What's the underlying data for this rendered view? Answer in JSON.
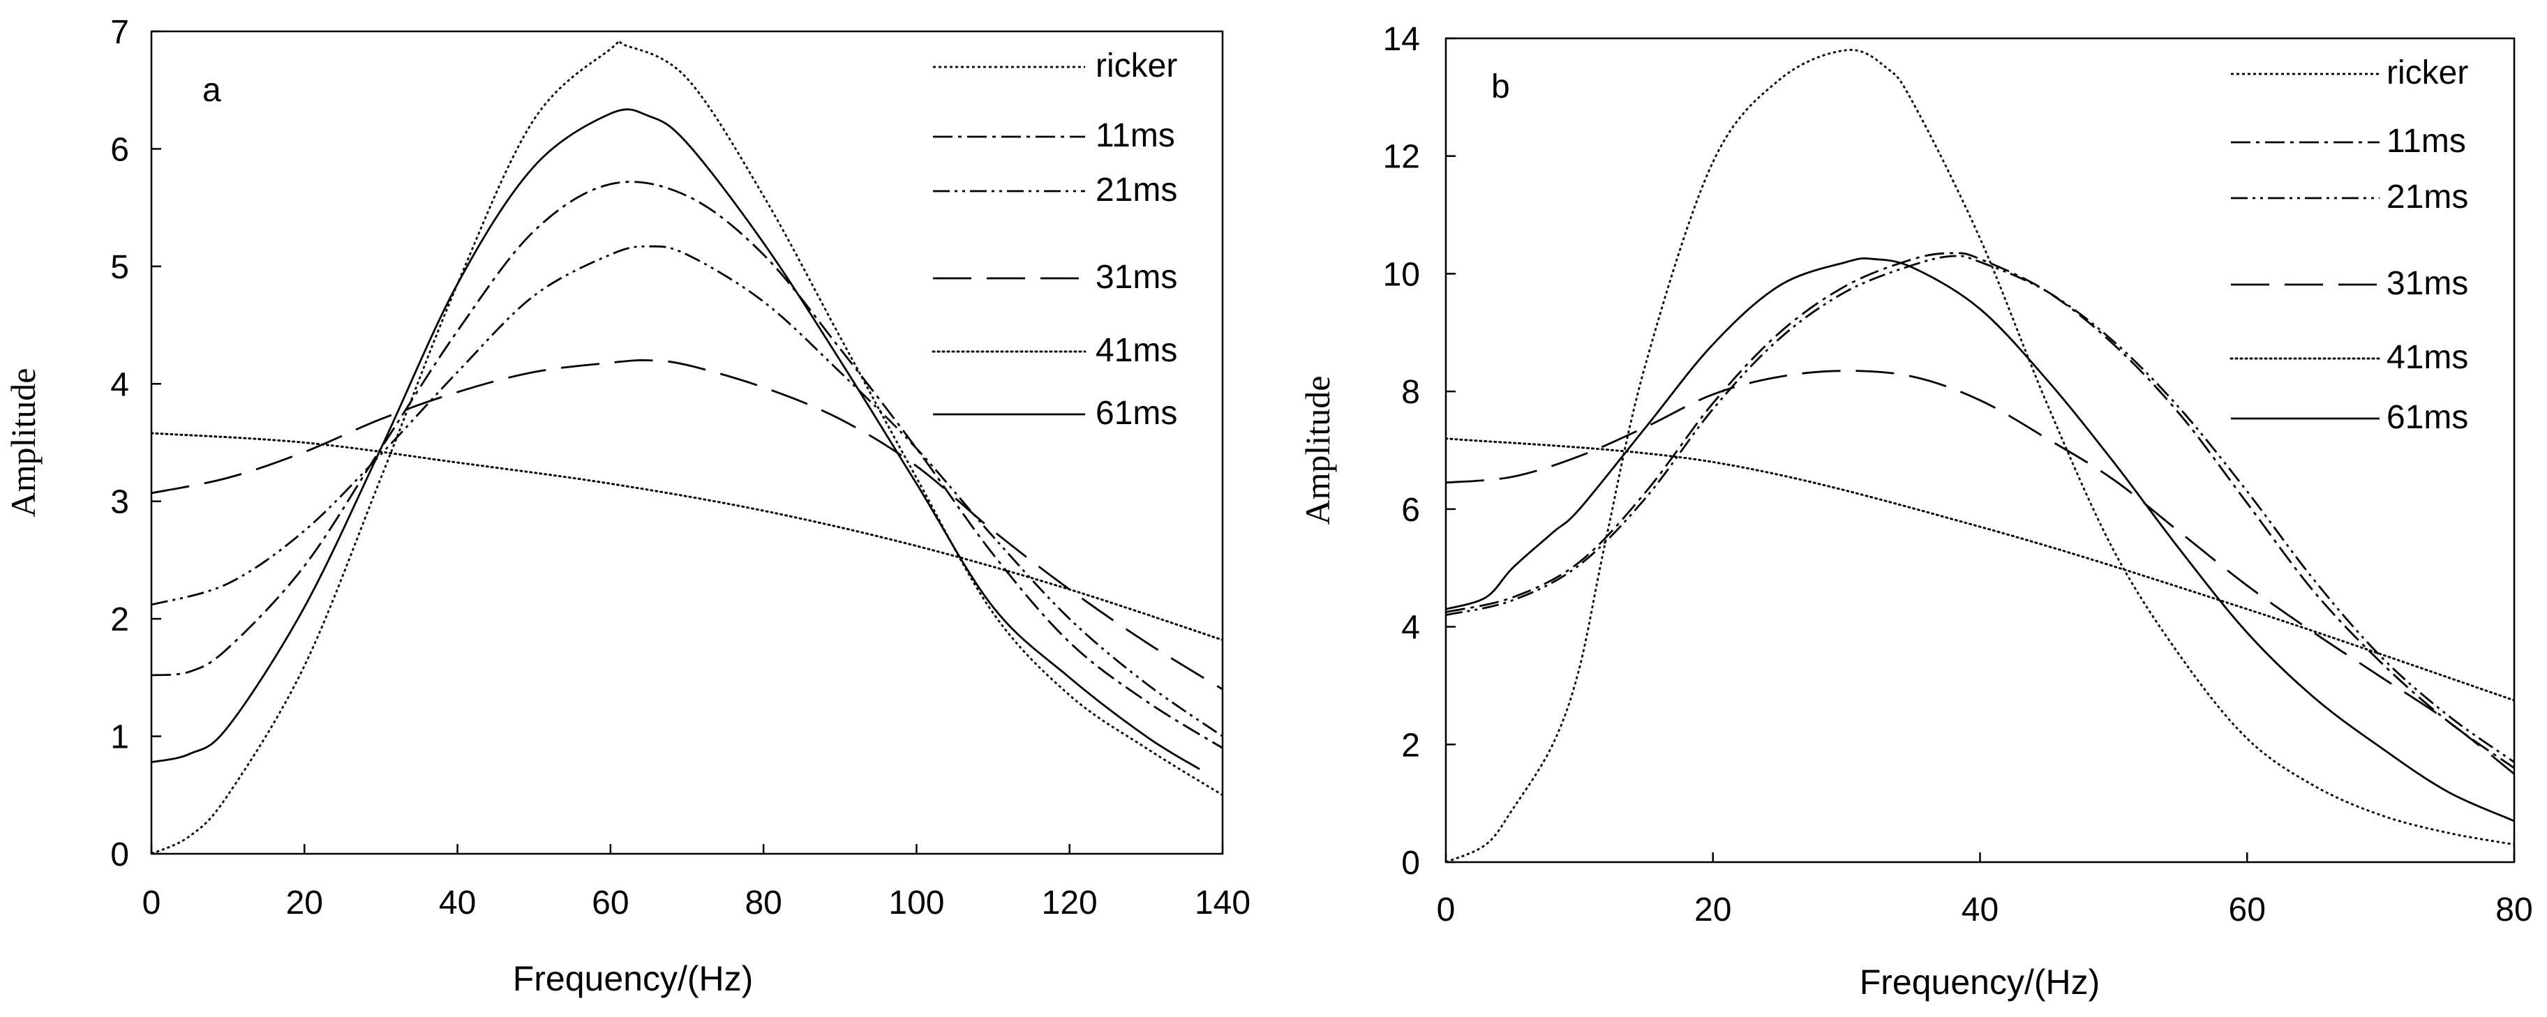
{
  "colors": {
    "ink": "#000000",
    "background": "#ffffff"
  },
  "chart_data": [
    {
      "type": "line",
      "panel_label": "a",
      "xlabel": "Frequency/(Hz)",
      "ylabel": "Amplitude",
      "xlim": [
        0,
        140
      ],
      "ylim": [
        0,
        7
      ],
      "xticks": [
        0,
        20,
        40,
        60,
        80,
        100,
        120,
        140
      ],
      "yticks": [
        0,
        1,
        2,
        3,
        4,
        5,
        6,
        7
      ],
      "grid": false,
      "legend_position": "top-right",
      "series": [
        {
          "name": "ricker",
          "style": "dotted-fine",
          "x": [
            0,
            5,
            10,
            20,
            30,
            40,
            50,
            60,
            62,
            70,
            80,
            90,
            100,
            110,
            120,
            130,
            140
          ],
          "y": [
            0,
            0.15,
            0.5,
            1.6,
            3.2,
            4.85,
            6.25,
            6.85,
            6.88,
            6.6,
            5.6,
            4.4,
            3.2,
            2.05,
            1.35,
            0.9,
            0.5
          ]
        },
        {
          "name": "11ms",
          "style": "dash-dot",
          "x": [
            0,
            5,
            10,
            20,
            30,
            40,
            50,
            60,
            70,
            80,
            90,
            100,
            110,
            120,
            130,
            140
          ],
          "y": [
            1.52,
            1.55,
            1.75,
            2.45,
            3.45,
            4.45,
            5.3,
            5.7,
            5.6,
            5.1,
            4.3,
            3.45,
            2.55,
            1.8,
            1.3,
            0.9
          ]
        },
        {
          "name": "21ms",
          "style": "dash-dot-dot",
          "x": [
            0,
            10,
            20,
            30,
            40,
            50,
            60,
            65,
            70,
            80,
            90,
            100,
            110,
            120,
            130,
            140
          ],
          "y": [
            2.12,
            2.3,
            2.75,
            3.4,
            4.1,
            4.75,
            5.1,
            5.17,
            5.1,
            4.7,
            4.1,
            3.45,
            2.7,
            2.0,
            1.45,
            1.0
          ]
        },
        {
          "name": "31ms",
          "style": "long-dash",
          "x": [
            0,
            10,
            20,
            30,
            40,
            50,
            60,
            65,
            70,
            80,
            90,
            100,
            110,
            120,
            130,
            140
          ],
          "y": [
            3.07,
            3.2,
            3.42,
            3.7,
            3.93,
            4.1,
            4.18,
            4.2,
            4.16,
            3.97,
            3.7,
            3.3,
            2.75,
            2.25,
            1.8,
            1.4
          ]
        },
        {
          "name": "41ms",
          "style": "dotted",
          "x": [
            0,
            20,
            40,
            60,
            80,
            100,
            120,
            140
          ],
          "y": [
            3.58,
            3.5,
            3.33,
            3.15,
            2.92,
            2.62,
            2.25,
            1.82
          ]
        },
        {
          "name": "61ms",
          "style": "solid",
          "x": [
            0,
            5,
            10,
            20,
            30,
            40,
            50,
            60,
            65,
            70,
            80,
            90,
            100,
            110,
            120,
            130,
            137
          ],
          "y": [
            0.78,
            0.85,
            1.08,
            2.1,
            3.45,
            4.85,
            5.85,
            6.3,
            6.28,
            6.05,
            5.2,
            4.2,
            3.15,
            2.1,
            1.5,
            1.0,
            0.72
          ]
        }
      ]
    },
    {
      "type": "line",
      "panel_label": "b",
      "xlabel": "Frequency/(Hz)",
      "ylabel": "Amplitude",
      "xlim": [
        0,
        80
      ],
      "ylim": [
        0,
        14
      ],
      "xticks": [
        0,
        20,
        40,
        60,
        80
      ],
      "yticks": [
        0,
        2,
        4,
        6,
        8,
        10,
        12,
        14
      ],
      "grid": false,
      "legend_position": "top-right",
      "series": [
        {
          "name": "ricker",
          "style": "dotted-fine",
          "x": [
            0,
            3,
            5,
            8,
            10,
            12,
            15,
            20,
            25,
            30,
            33,
            35,
            40,
            45,
            50,
            55,
            60,
            65,
            70,
            75,
            80
          ],
          "y": [
            0,
            0.3,
            0.9,
            2.0,
            3.3,
            5.5,
            8.5,
            11.9,
            13.3,
            13.8,
            13.5,
            12.9,
            10.6,
            7.8,
            5.3,
            3.5,
            2.1,
            1.3,
            0.8,
            0.5,
            0.3
          ]
        },
        {
          "name": "11ms",
          "style": "dash-dot",
          "x": [
            0,
            5,
            10,
            15,
            20,
            25,
            30,
            35,
            38,
            40,
            45,
            50,
            55,
            60,
            65,
            70,
            75,
            80
          ],
          "y": [
            4.25,
            4.5,
            5.1,
            6.3,
            7.8,
            9.0,
            9.8,
            10.25,
            10.35,
            10.25,
            9.7,
            8.8,
            7.6,
            6.1,
            4.6,
            3.4,
            2.4,
            1.6
          ]
        },
        {
          "name": "21ms",
          "style": "dash-dot-dot",
          "x": [
            0,
            5,
            10,
            15,
            20,
            25,
            30,
            35,
            38,
            40,
            45,
            50,
            55,
            60,
            65,
            70,
            75,
            80
          ],
          "y": [
            4.2,
            4.45,
            5.05,
            6.2,
            7.7,
            8.9,
            9.7,
            10.15,
            10.3,
            10.2,
            9.7,
            8.85,
            7.7,
            6.3,
            4.8,
            3.5,
            2.5,
            1.7
          ]
        },
        {
          "name": "31ms",
          "style": "long-dash",
          "x": [
            0,
            5,
            10,
            15,
            20,
            25,
            30,
            35,
            40,
            45,
            50,
            55,
            60,
            65,
            70,
            75,
            80
          ],
          "y": [
            6.45,
            6.55,
            6.9,
            7.4,
            7.95,
            8.25,
            8.35,
            8.25,
            7.85,
            7.2,
            6.5,
            5.6,
            4.7,
            3.9,
            3.15,
            2.4,
            1.5
          ]
        },
        {
          "name": "41ms",
          "style": "dotted",
          "x": [
            0,
            20,
            40,
            60,
            80
          ],
          "y": [
            7.2,
            6.8,
            5.7,
            4.3,
            2.75
          ]
        },
        {
          "name": "61ms",
          "style": "solid",
          "x": [
            0,
            3,
            5,
            8,
            10,
            15,
            20,
            25,
            30,
            32,
            35,
            40,
            45,
            50,
            55,
            60,
            65,
            70,
            75,
            80
          ],
          "y": [
            4.3,
            4.5,
            5.0,
            5.6,
            6.0,
            7.4,
            8.8,
            9.8,
            10.2,
            10.25,
            10.1,
            9.4,
            8.2,
            6.8,
            5.3,
            3.9,
            2.8,
            1.95,
            1.2,
            0.7
          ]
        }
      ]
    }
  ]
}
